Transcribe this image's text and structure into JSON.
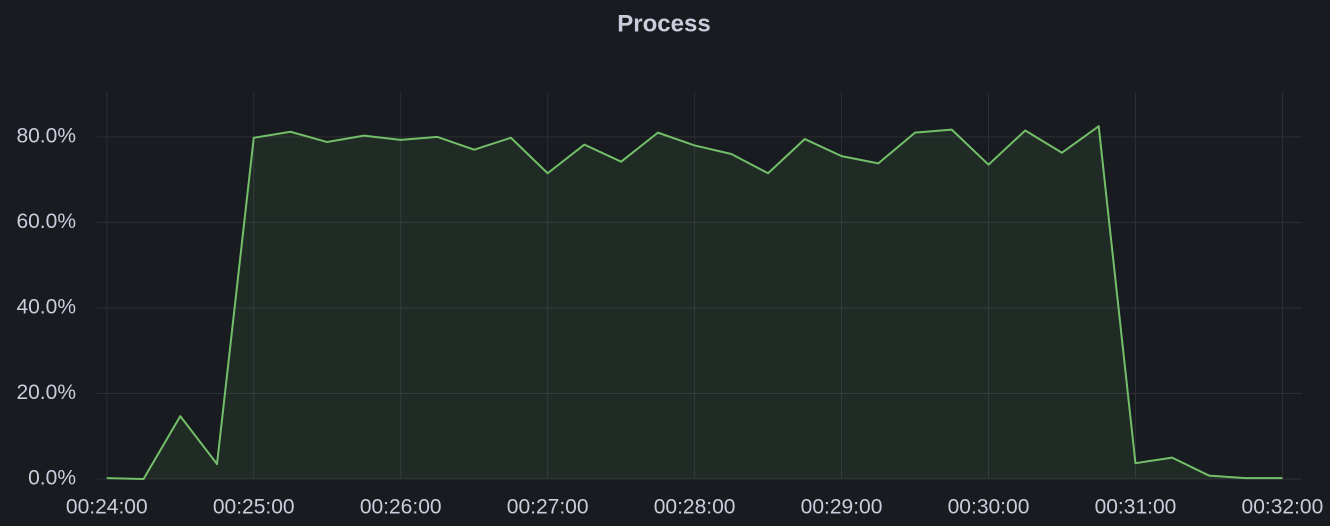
{
  "chart_data": {
    "type": "line",
    "title": "Process",
    "x": [
      "00:24:00",
      "00:24:15",
      "00:24:30",
      "00:24:45",
      "00:25:00",
      "00:25:15",
      "00:25:30",
      "00:25:45",
      "00:26:00",
      "00:26:15",
      "00:26:30",
      "00:26:45",
      "00:27:00",
      "00:27:15",
      "00:27:30",
      "00:27:45",
      "00:28:00",
      "00:28:15",
      "00:28:30",
      "00:28:45",
      "00:29:00",
      "00:29:15",
      "00:29:30",
      "00:29:45",
      "00:30:00",
      "00:30:15",
      "00:30:30",
      "00:30:45",
      "00:31:00",
      "00:31:15",
      "00:31:30",
      "00:31:45",
      "00:32:00"
    ],
    "series": [
      {
        "name": "Process",
        "color": "#73bf69",
        "values": [
          0.2,
          0,
          14.7,
          3.5,
          79.8,
          81.2,
          78.8,
          80.3,
          79.3,
          80.0,
          77.0,
          79.8,
          71.5,
          78.2,
          74.2,
          81.0,
          78.0,
          76.0,
          71.5,
          79.5,
          75.5,
          73.8,
          81.0,
          81.7,
          73.5,
          81.5,
          76.3,
          82.5,
          3.7,
          5.0,
          0.8,
          0.2,
          0.2
        ]
      }
    ],
    "xlim": [
      "00:23:56",
      "00:32:08"
    ],
    "xticks": [
      "00:24:00",
      "00:25:00",
      "00:26:00",
      "00:27:00",
      "00:28:00",
      "00:29:00",
      "00:30:00",
      "00:31:00",
      "00:32:00"
    ],
    "ylim": [
      0,
      90.5
    ],
    "yticks": [
      {
        "value": 0,
        "label": "0.0%"
      },
      {
        "value": 20,
        "label": "20.0%"
      },
      {
        "value": 40,
        "label": "40.0%"
      },
      {
        "value": 60,
        "label": "60.0%"
      },
      {
        "value": 80,
        "label": "80.0%"
      }
    ],
    "grid": true,
    "fill": true
  }
}
